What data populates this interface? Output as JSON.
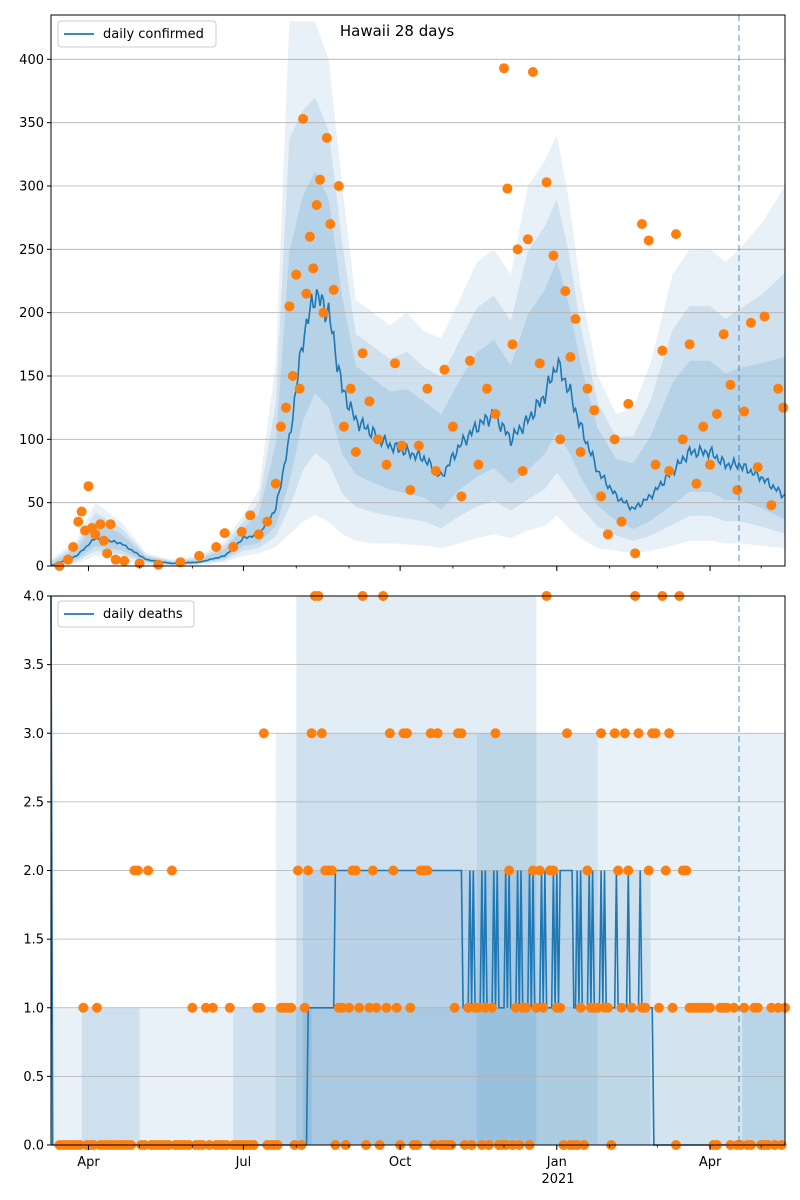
{
  "chart_data": [
    {
      "type": "line",
      "title": "Hawaii 28 days",
      "legend": "daily confirmed",
      "legend_position": "top-left",
      "ylim": [
        0,
        435
      ],
      "grid": "horizontal",
      "yticks": [
        0,
        50,
        100,
        150,
        200,
        250,
        300,
        350,
        400
      ],
      "x_range": [
        "2020-03-10",
        "2021-05-15"
      ],
      "xticks": [
        {
          "date": "2020-04-01",
          "label": "Apr"
        },
        {
          "date": "2020-07-01",
          "label": "Jul"
        },
        {
          "date": "2020-10-01",
          "label": "Oct"
        },
        {
          "date": "2021-01-01",
          "label": "Jan"
        },
        {
          "date": "2021-04-01",
          "label": "Apr"
        }
      ],
      "year_label": "2021",
      "forecast_start": "2021-04-18",
      "colors": {
        "line": "#1f77b4",
        "points": "#ff7f0e",
        "band": "#1f77b4"
      },
      "series": [
        {
          "name": "daily confirmed",
          "x": [
            "2020-03-10",
            "2020-03-25",
            "2020-04-05",
            "2020-04-20",
            "2020-05-05",
            "2020-05-20",
            "2020-06-05",
            "2020-06-20",
            "2020-07-01",
            "2020-07-10",
            "2020-07-20",
            "2020-07-28",
            "2020-08-05",
            "2020-08-12",
            "2020-08-20",
            "2020-08-28",
            "2020-09-05",
            "2020-09-15",
            "2020-09-25",
            "2020-10-05",
            "2020-10-15",
            "2020-10-25",
            "2020-11-05",
            "2020-11-15",
            "2020-11-25",
            "2020-12-05",
            "2020-12-15",
            "2020-12-25",
            "2021-01-01",
            "2021-01-08",
            "2021-01-15",
            "2021-01-25",
            "2021-02-05",
            "2021-02-15",
            "2021-02-25",
            "2021-03-10",
            "2021-03-20",
            "2021-04-01",
            "2021-04-10",
            "2021-04-18",
            "2021-05-01",
            "2021-05-15"
          ],
          "y": [
            0,
            8,
            22,
            18,
            5,
            2,
            3,
            8,
            22,
            25,
            45,
            100,
            180,
            215,
            200,
            140,
            115,
            105,
            95,
            90,
            85,
            70,
            95,
            110,
            120,
            100,
            115,
            135,
            160,
            140,
            110,
            75,
            55,
            45,
            55,
            75,
            90,
            90,
            80,
            80,
            70,
            55
          ]
        }
      ],
      "upper_band": [
        5,
        20,
        50,
        35,
        10,
        5,
        8,
        20,
        40,
        60,
        160,
        430,
        430,
        430,
        400,
        300,
        210,
        200,
        190,
        200,
        185,
        180,
        210,
        240,
        250,
        230,
        300,
        320,
        340,
        290,
        220,
        150,
        120,
        125,
        160,
        230,
        250,
        250,
        240,
        250,
        270,
        300
      ],
      "lower_band": [
        0,
        2,
        8,
        6,
        1,
        0,
        1,
        3,
        8,
        10,
        15,
        25,
        35,
        40,
        35,
        25,
        20,
        18,
        18,
        17,
        16,
        14,
        18,
        22,
        25,
        22,
        28,
        32,
        40,
        30,
        22,
        14,
        12,
        10,
        12,
        16,
        20,
        20,
        18,
        18,
        16,
        14
      ],
      "observed_approx": [
        [
          "2020-03-15",
          0
        ],
        [
          "2020-03-20",
          5
        ],
        [
          "2020-03-23",
          15
        ],
        [
          "2020-03-26",
          35
        ],
        [
          "2020-03-28",
          43
        ],
        [
          "2020-03-30",
          28
        ],
        [
          "2020-04-01",
          63
        ],
        [
          "2020-04-03",
          30
        ],
        [
          "2020-04-05",
          25
        ],
        [
          "2020-04-08",
          33
        ],
        [
          "2020-04-10",
          20
        ],
        [
          "2020-04-12",
          10
        ],
        [
          "2020-04-14",
          33
        ],
        [
          "2020-04-17",
          5
        ],
        [
          "2020-04-22",
          4
        ],
        [
          "2020-05-01",
          2
        ],
        [
          "2020-05-12",
          1
        ],
        [
          "2020-05-25",
          3
        ],
        [
          "2020-06-05",
          8
        ],
        [
          "2020-06-15",
          15
        ],
        [
          "2020-06-20",
          26
        ],
        [
          "2020-06-25",
          15
        ],
        [
          "2020-06-30",
          27
        ],
        [
          "2020-07-05",
          40
        ],
        [
          "2020-07-10",
          25
        ],
        [
          "2020-07-15",
          35
        ],
        [
          "2020-07-20",
          65
        ],
        [
          "2020-07-23",
          110
        ],
        [
          "2020-07-26",
          125
        ],
        [
          "2020-07-28",
          205
        ],
        [
          "2020-07-30",
          150
        ],
        [
          "2020-08-01",
          230
        ],
        [
          "2020-08-03",
          140
        ],
        [
          "2020-08-05",
          353
        ],
        [
          "2020-08-07",
          215
        ],
        [
          "2020-08-09",
          260
        ],
        [
          "2020-08-11",
          235
        ],
        [
          "2020-08-13",
          285
        ],
        [
          "2020-08-15",
          305
        ],
        [
          "2020-08-17",
          200
        ],
        [
          "2020-08-19",
          338
        ],
        [
          "2020-08-21",
          270
        ],
        [
          "2020-08-23",
          218
        ],
        [
          "2020-08-26",
          300
        ],
        [
          "2020-08-29",
          110
        ],
        [
          "2020-09-02",
          140
        ],
        [
          "2020-09-05",
          90
        ],
        [
          "2020-09-09",
          168
        ],
        [
          "2020-09-13",
          130
        ],
        [
          "2020-09-18",
          100
        ],
        [
          "2020-09-23",
          80
        ],
        [
          "2020-09-28",
          160
        ],
        [
          "2020-10-02",
          95
        ],
        [
          "2020-10-07",
          60
        ],
        [
          "2020-10-12",
          95
        ],
        [
          "2020-10-17",
          140
        ],
        [
          "2020-10-22",
          75
        ],
        [
          "2020-10-27",
          155
        ],
        [
          "2020-11-01",
          110
        ],
        [
          "2020-11-06",
          55
        ],
        [
          "2020-11-11",
          162
        ],
        [
          "2020-11-16",
          80
        ],
        [
          "2020-11-21",
          140
        ],
        [
          "2020-11-26",
          120
        ],
        [
          "2020-12-01",
          393
        ],
        [
          "2020-12-03",
          298
        ],
        [
          "2020-12-06",
          175
        ],
        [
          "2020-12-09",
          250
        ],
        [
          "2020-12-12",
          75
        ],
        [
          "2020-12-15",
          258
        ],
        [
          "2020-12-18",
          390
        ],
        [
          "2020-12-22",
          160
        ],
        [
          "2020-12-26",
          303
        ],
        [
          "2020-12-30",
          245
        ],
        [
          "2021-01-03",
          100
        ],
        [
          "2021-01-06",
          217
        ],
        [
          "2021-01-09",
          165
        ],
        [
          "2021-01-12",
          195
        ],
        [
          "2021-01-15",
          90
        ],
        [
          "2021-01-19",
          140
        ],
        [
          "2021-01-23",
          123
        ],
        [
          "2021-01-27",
          55
        ],
        [
          "2021-01-31",
          25
        ],
        [
          "2021-02-04",
          100
        ],
        [
          "2021-02-08",
          35
        ],
        [
          "2021-02-12",
          128
        ],
        [
          "2021-02-16",
          10
        ],
        [
          "2021-02-20",
          270
        ],
        [
          "2021-02-24",
          257
        ],
        [
          "2021-02-28",
          80
        ],
        [
          "2021-03-04",
          170
        ],
        [
          "2021-03-08",
          75
        ],
        [
          "2021-03-12",
          262
        ],
        [
          "2021-03-16",
          100
        ],
        [
          "2021-03-20",
          175
        ],
        [
          "2021-03-24",
          65
        ],
        [
          "2021-03-28",
          110
        ],
        [
          "2021-04-01",
          80
        ],
        [
          "2021-04-05",
          120
        ],
        [
          "2021-04-09",
          183
        ],
        [
          "2021-04-13",
          143
        ],
        [
          "2021-04-17",
          60
        ],
        [
          "2021-04-21",
          122
        ],
        [
          "2021-04-25",
          192
        ],
        [
          "2021-04-29",
          78
        ],
        [
          "2021-05-03",
          197
        ],
        [
          "2021-05-07",
          48
        ],
        [
          "2021-05-11",
          140
        ],
        [
          "2021-05-14",
          125
        ]
      ]
    },
    {
      "type": "line",
      "title": "",
      "legend": "daily deaths",
      "legend_position": "top-left",
      "ylim": [
        0,
        4
      ],
      "grid": "horizontal",
      "yticks": [
        0,
        0.5,
        1,
        1.5,
        2,
        2.5,
        3,
        3.5,
        4
      ],
      "ytick_labels": [
        "0.0",
        "0.5",
        "1.0",
        "1.5",
        "2.0",
        "2.5",
        "3.0",
        "3.5",
        "4.0"
      ],
      "x_range": [
        "2020-03-10",
        "2021-05-15"
      ],
      "xticks": [
        {
          "date": "2020-04-01",
          "label": "Apr"
        },
        {
          "date": "2020-07-01",
          "label": "Jul"
        },
        {
          "date": "2020-10-01",
          "label": "Oct"
        },
        {
          "date": "2021-01-01",
          "label": "Jan"
        },
        {
          "date": "2021-04-01",
          "label": "Apr"
        }
      ],
      "year_label": "2021",
      "forecast_start": "2021-04-18",
      "colors": {
        "line": "#1f77b4",
        "points": "#ff7f0e",
        "band": "#1f77b4"
      },
      "series": [
        {
          "name": "daily deaths",
          "x": [
            "2020-03-10",
            "2020-03-11",
            "2020-08-07",
            "2020-08-08",
            "2020-08-23",
            "2020-08-24",
            "2020-11-05",
            "2020-11-06",
            "2021-01-02",
            "2021-01-03",
            "2021-01-10",
            "2021-01-11",
            "2021-02-10",
            "2021-02-11",
            "2021-02-26",
            "2021-02-27",
            "2021-05-15"
          ],
          "y": [
            4,
            0,
            0,
            1,
            1,
            2,
            2,
            1,
            1,
            2,
            2,
            1,
            1,
            1,
            1,
            0,
            0
          ]
        }
      ],
      "observed_levels": [
        0,
        1,
        2,
        3,
        4
      ]
    }
  ]
}
